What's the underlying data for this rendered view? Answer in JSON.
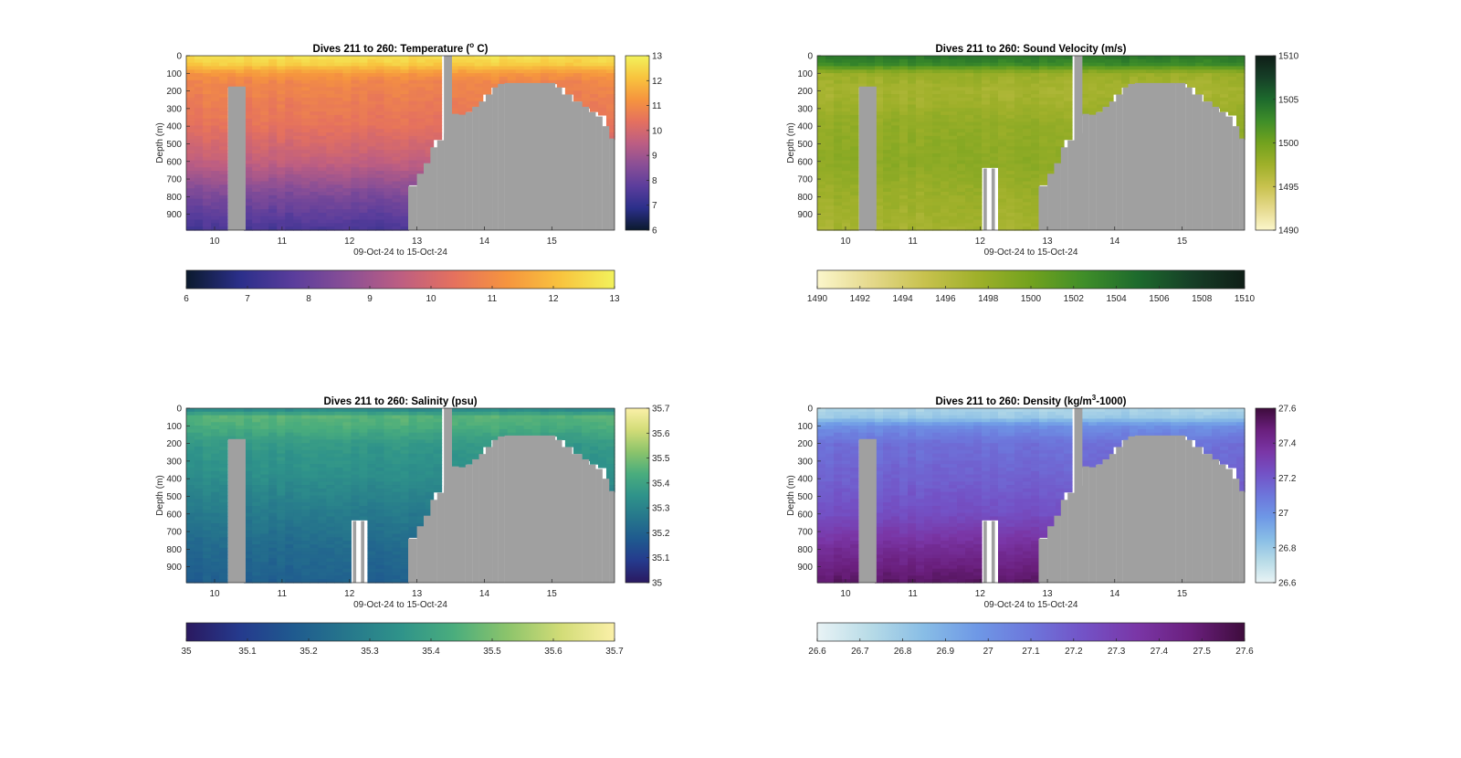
{
  "figure": {
    "xlabel": "09-Oct-24 to 15-Oct-24",
    "ylabel": "Depth (m)",
    "mask_color": "#a0a0a0",
    "xlim": [
      9.58,
      15.93
    ],
    "ylim": [
      0,
      990
    ],
    "x_ticks": [
      10,
      11,
      12,
      13,
      14,
      15
    ],
    "y_ticks": [
      0,
      100,
      200,
      300,
      400,
      500,
      600,
      700,
      800,
      900
    ]
  },
  "chart_data": [
    {
      "type": "heatmap",
      "title": "Dives 211 to 260: Temperature (° C)",
      "title_pre": "Dives 211 to 260: Temperature (",
      "title_sup": "o",
      "title_post": " C)",
      "xlabel": "09-Oct-24 to 15-Oct-24",
      "ylabel": "Depth (m)",
      "clim": [
        6,
        13
      ],
      "side_ticks": [
        6,
        7,
        8,
        9,
        10,
        11,
        12,
        13
      ],
      "bottom_ticks": [
        6,
        7,
        8,
        9,
        10,
        11,
        12,
        13
      ],
      "colormap": [
        "#0b1a2d",
        "#2b2f8a",
        "#5a3d9c",
        "#8a4f96",
        "#bd5e82",
        "#e5715e",
        "#f6953e",
        "#f8c43e",
        "#f2f25c"
      ],
      "profile": {
        "depths": [
          0,
          50,
          100,
          150,
          250,
          400,
          600,
          800,
          990
        ],
        "values": [
          12.7,
          12.3,
          11.3,
          10.9,
          10.7,
          10.4,
          9.6,
          8.3,
          7.4
        ]
      },
      "mask": "temp"
    },
    {
      "type": "heatmap",
      "title": "Dives 211 to 260: Sound Velocity (m/s)",
      "title_pre": "Dives 211 to 260: Sound Velocity (m/s)",
      "title_sup": "",
      "title_post": "",
      "xlabel": "09-Oct-24 to 15-Oct-24",
      "ylabel": "Depth (m)",
      "clim": [
        1490,
        1510
      ],
      "side_ticks": [
        1490,
        1495,
        1500,
        1505,
        1510
      ],
      "bottom_ticks": [
        1490,
        1492,
        1494,
        1496,
        1498,
        1500,
        1502,
        1504,
        1506,
        1508,
        1510
      ],
      "colormap": [
        "#fbf6cb",
        "#e5d98c",
        "#c8c24e",
        "#9fb02a",
        "#72a21e",
        "#3f8e29",
        "#1d6a2d",
        "#163f27",
        "#0f1e17"
      ],
      "profile": {
        "depths": [
          0,
          50,
          100,
          200,
          400,
          600,
          800,
          990
        ],
        "values": [
          1504.2,
          1502.8,
          1497.8,
          1497.0,
          1498.2,
          1498.5,
          1497.6,
          1497.0
        ]
      },
      "mask": "other"
    },
    {
      "type": "heatmap",
      "title": "Dives 211 to 260: Salinity (psu)",
      "title_pre": "Dives 211 to 260: Salinity (psu)",
      "title_sup": "",
      "title_post": "",
      "xlabel": "09-Oct-24 to 15-Oct-24",
      "ylabel": "Depth (m)",
      "clim": [
        35,
        35.7
      ],
      "side_ticks": [
        35,
        35.1,
        35.2,
        35.3,
        35.4,
        35.5,
        35.6,
        35.7
      ],
      "bottom_ticks": [
        35,
        35.1,
        35.2,
        35.3,
        35.4,
        35.5,
        35.6,
        35.7
      ],
      "colormap": [
        "#2a1960",
        "#253a8d",
        "#1f5a8f",
        "#26778c",
        "#2f938a",
        "#4aad7d",
        "#8cc46b",
        "#d2dc77",
        "#fbf0a8"
      ],
      "profile": {
        "depths": [
          0,
          50,
          100,
          200,
          400,
          600,
          800,
          990
        ],
        "values": [
          35.3,
          35.46,
          35.44,
          35.37,
          35.33,
          35.27,
          35.22,
          35.19
        ]
      },
      "mask": "other"
    },
    {
      "type": "heatmap",
      "title": "Dives 211 to 260: Density (kg/m3-1000)",
      "title_pre": "Dives 211 to 260: Density (kg/m",
      "title_sup": "3",
      "title_post": "-1000)",
      "xlabel": "09-Oct-24 to 15-Oct-24",
      "ylabel": "Depth (m)",
      "clim": [
        26.6,
        27.6
      ],
      "side_ticks": [
        26.6,
        26.8,
        27,
        27.2,
        27.4,
        27.6
      ],
      "bottom_ticks": [
        26.6,
        26.7,
        26.8,
        26.9,
        27,
        27.1,
        27.2,
        27.3,
        27.4,
        27.5,
        27.6
      ],
      "colormap": [
        "#e9f3f5",
        "#b7dbe7",
        "#88bde6",
        "#6e98e6",
        "#6d76db",
        "#7352c6",
        "#7a36a6",
        "#6a1f7d",
        "#3e0c3c"
      ],
      "profile": {
        "depths": [
          0,
          50,
          100,
          200,
          400,
          600,
          800,
          990
        ],
        "values": [
          26.75,
          26.8,
          27.0,
          27.12,
          27.17,
          27.24,
          27.4,
          27.52
        ]
      },
      "mask": "other"
    }
  ]
}
